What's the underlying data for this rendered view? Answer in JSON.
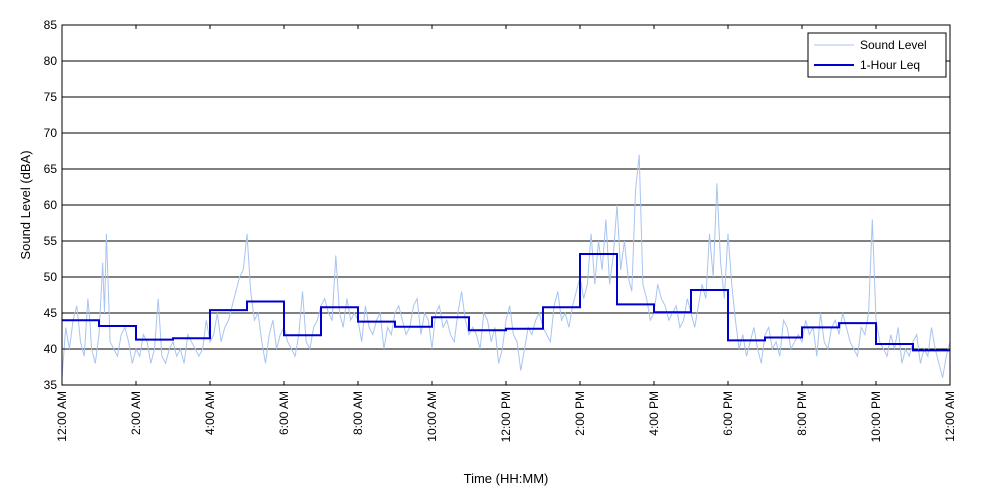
{
  "chart_data": {
    "type": "line",
    "title": "",
    "xlabel": "Time (HH:MM)",
    "ylabel": "Sound Level (dBA)",
    "ylim": [
      35,
      85
    ],
    "xlim_hours": [
      0,
      24
    ],
    "y_ticks": [
      35,
      40,
      45,
      50,
      55,
      60,
      65,
      70,
      75,
      80,
      85
    ],
    "x_ticks": [
      {
        "hour": 0,
        "label": "12:00 AM"
      },
      {
        "hour": 2,
        "label": "2:00 AM"
      },
      {
        "hour": 4,
        "label": "4:00 AM"
      },
      {
        "hour": 6,
        "label": "6:00 AM"
      },
      {
        "hour": 8,
        "label": "8:00 AM"
      },
      {
        "hour": 10,
        "label": "10:00 AM"
      },
      {
        "hour": 12,
        "label": "12:00 PM"
      },
      {
        "hour": 14,
        "label": "2:00 PM"
      },
      {
        "hour": 16,
        "label": "4:00 PM"
      },
      {
        "hour": 18,
        "label": "6:00 PM"
      },
      {
        "hour": 20,
        "label": "8:00 PM"
      },
      {
        "hour": 22,
        "label": "10:00 PM"
      },
      {
        "hour": 24,
        "label": "12:00 AM"
      }
    ],
    "grid": "horizontal",
    "legend_position": "top-right",
    "series": [
      {
        "name": "Sound Level",
        "color": "#a8c4f0",
        "style": "thin-line",
        "x_hours": [
          0.0,
          0.1,
          0.2,
          0.3,
          0.4,
          0.5,
          0.6,
          0.7,
          0.75,
          0.8,
          0.9,
          1.0,
          1.1,
          1.15,
          1.2,
          1.3,
          1.4,
          1.5,
          1.6,
          1.7,
          1.8,
          1.9,
          2.0,
          2.1,
          2.2,
          2.3,
          2.4,
          2.5,
          2.6,
          2.7,
          2.8,
          2.9,
          3.0,
          3.1,
          3.2,
          3.3,
          3.4,
          3.5,
          3.6,
          3.7,
          3.8,
          3.9,
          4.0,
          4.1,
          4.2,
          4.3,
          4.4,
          4.5,
          4.6,
          4.7,
          4.8,
          4.9,
          5.0,
          5.1,
          5.2,
          5.3,
          5.4,
          5.5,
          5.6,
          5.7,
          5.8,
          5.9,
          6.0,
          6.1,
          6.2,
          6.3,
          6.4,
          6.5,
          6.6,
          6.7,
          6.8,
          6.9,
          7.0,
          7.1,
          7.2,
          7.3,
          7.4,
          7.5,
          7.6,
          7.7,
          7.8,
          7.9,
          8.0,
          8.1,
          8.2,
          8.3,
          8.4,
          8.5,
          8.6,
          8.7,
          8.8,
          8.9,
          9.0,
          9.1,
          9.2,
          9.3,
          9.4,
          9.5,
          9.6,
          9.7,
          9.8,
          9.9,
          10.0,
          10.1,
          10.2,
          10.3,
          10.4,
          10.5,
          10.6,
          10.7,
          10.8,
          10.9,
          11.0,
          11.1,
          11.2,
          11.3,
          11.4,
          11.5,
          11.6,
          11.7,
          11.8,
          11.9,
          12.0,
          12.1,
          12.2,
          12.3,
          12.4,
          12.5,
          12.6,
          12.7,
          12.8,
          12.9,
          13.0,
          13.1,
          13.2,
          13.3,
          13.4,
          13.5,
          13.6,
          13.7,
          13.8,
          13.9,
          14.0,
          14.1,
          14.2,
          14.3,
          14.4,
          14.5,
          14.6,
          14.7,
          14.8,
          14.9,
          15.0,
          15.1,
          15.2,
          15.3,
          15.4,
          15.5,
          15.6,
          15.7,
          15.8,
          15.9,
          16.0,
          16.1,
          16.2,
          16.3,
          16.4,
          16.5,
          16.6,
          16.7,
          16.8,
          16.9,
          17.0,
          17.1,
          17.2,
          17.3,
          17.4,
          17.5,
          17.6,
          17.7,
          17.8,
          17.9,
          18.0,
          18.1,
          18.2,
          18.3,
          18.4,
          18.5,
          18.6,
          18.7,
          18.8,
          18.9,
          19.0,
          19.1,
          19.2,
          19.3,
          19.4,
          19.5,
          19.6,
          19.7,
          19.8,
          19.9,
          20.0,
          20.1,
          20.2,
          20.3,
          20.4,
          20.5,
          20.6,
          20.7,
          20.8,
          20.9,
          21.0,
          21.1,
          21.2,
          21.3,
          21.4,
          21.5,
          21.6,
          21.7,
          21.8,
          21.9,
          22.0,
          22.1,
          22.2,
          22.3,
          22.4,
          22.5,
          22.6,
          22.7,
          22.8,
          22.9,
          23.0,
          23.1,
          23.2,
          23.3,
          23.4,
          23.5,
          23.6,
          23.7,
          23.8,
          23.9,
          24.0
        ],
        "values": [
          36,
          43,
          40,
          44,
          46,
          41,
          39,
          47,
          44,
          40,
          38,
          42,
          52,
          45,
          56,
          41,
          40,
          39,
          42,
          43,
          41,
          38,
          40,
          39,
          42,
          41,
          38,
          40,
          47,
          39,
          38,
          40,
          41,
          39,
          40,
          38,
          42,
          41,
          40,
          39,
          40,
          44,
          41,
          42,
          45,
          41,
          43,
          44,
          46,
          48,
          50,
          51,
          56,
          48,
          44,
          45,
          41,
          38,
          42,
          44,
          40,
          42,
          43,
          41,
          40,
          39,
          42,
          48,
          41,
          40,
          43,
          44,
          46,
          47,
          45,
          44,
          53,
          45,
          43,
          47,
          44,
          45,
          44,
          41,
          46,
          43,
          42,
          44,
          45,
          40,
          43,
          42,
          45,
          46,
          44,
          42,
          43,
          46,
          47,
          42,
          45,
          44,
          40,
          45,
          46,
          43,
          44,
          42,
          41,
          45,
          48,
          44,
          42,
          43,
          42,
          40,
          45,
          44,
          41,
          43,
          38,
          40,
          44,
          46,
          42,
          41,
          37,
          40,
          43,
          42,
          44,
          45,
          43,
          42,
          41,
          46,
          48,
          44,
          45,
          43,
          46,
          48,
          50,
          47,
          49,
          56,
          49,
          55,
          51,
          58,
          49,
          53,
          60,
          51,
          55,
          50,
          48,
          62,
          67,
          49,
          47,
          44,
          45,
          49,
          47,
          46,
          44,
          45,
          46,
          43,
          44,
          47,
          45,
          43,
          46,
          49,
          47,
          56,
          50,
          63,
          52,
          47,
          56,
          49,
          44,
          40,
          42,
          39,
          41,
          43,
          40,
          38,
          42,
          43,
          40,
          41,
          39,
          44,
          43,
          40,
          41,
          42,
          41,
          44,
          42,
          43,
          39,
          45,
          41,
          40,
          43,
          44,
          42,
          45,
          43,
          41,
          40,
          39,
          43,
          42,
          45,
          58,
          44,
          41,
          40,
          39,
          42,
          40,
          43,
          38,
          40,
          39,
          41,
          42,
          38,
          40,
          39,
          43,
          40,
          38,
          36,
          39,
          41
        ]
      },
      {
        "name": "1-Hour Leq",
        "color": "#0000cc",
        "style": "step",
        "hour_start": [
          0,
          1,
          2,
          3,
          4,
          5,
          6,
          7,
          8,
          9,
          10,
          11,
          12,
          13,
          14,
          15,
          16,
          17,
          18,
          19,
          20,
          21,
          22,
          23
        ],
        "values": [
          44.0,
          43.2,
          41.3,
          41.5,
          45.4,
          46.6,
          41.9,
          45.8,
          43.8,
          43.1,
          44.4,
          42.6,
          42.8,
          45.8,
          53.2,
          46.2,
          45.1,
          48.2,
          41.2,
          41.6,
          43.0,
          43.6,
          40.7,
          39.8
        ]
      }
    ]
  }
}
